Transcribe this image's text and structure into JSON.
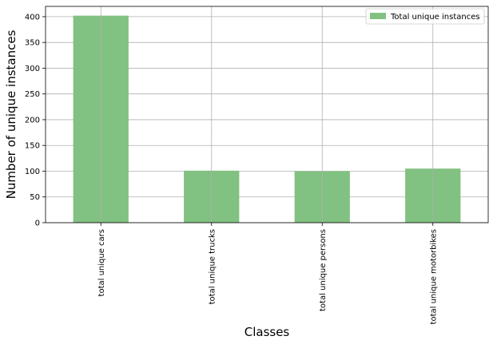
{
  "chart_data": {
    "type": "bar",
    "categories": [
      "total unique cars",
      "total unique trucks",
      "total unique persons",
      "total unique motorbikes"
    ],
    "series": [
      {
        "name": "Total unique instances",
        "values": [
          402,
          101,
          100,
          105
        ]
      }
    ],
    "xlabel": "Classes",
    "ylabel": "Number of unique instances",
    "ylim": [
      0,
      420
    ],
    "yticks": [
      0,
      50,
      100,
      150,
      200,
      250,
      300,
      350,
      400
    ],
    "grid": true,
    "legend_position": "top-right",
    "colors": {
      "bar": "#81c181",
      "grid": "#b0b0b0",
      "axis": "#000000"
    }
  }
}
